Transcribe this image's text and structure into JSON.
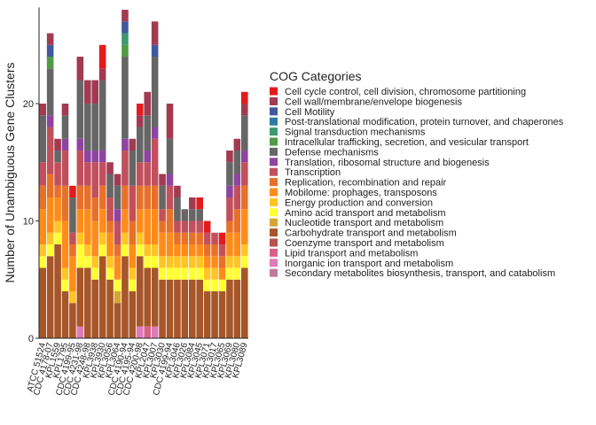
{
  "chart_data": {
    "type": "stacked-bar",
    "y_label": "Number of Unambiguous Gene Clusters",
    "legend_title": "COG Categories",
    "categories": [
      "ATCC 51524",
      "CDC 4178-07",
      "KPL1559",
      "KPL1795",
      "CDC 4199-95",
      "CDC 4231-98",
      "CDC 4248-98",
      "KPL3938",
      "KPL3930",
      "KPL3056",
      "KPL3064",
      "CDC 4190-94",
      "CDC 4195-94",
      "CDC 4200-98",
      "KPL2047",
      "KPL3007",
      "KPL3030",
      "CDC 4199-94",
      "KPL3046",
      "KPL3026",
      "KPL3084",
      "KPL3045",
      "KPL3071",
      "KPL3017",
      "KPL3065",
      "KPL3069",
      "KPL3080",
      "KPL3089"
    ],
    "ylim": [
      0,
      28.2
    ],
    "yticks": [
      0,
      10,
      20
    ],
    "series": [
      {
        "name": "Cell cycle control, cell division, chromosome partitioning",
        "color": "#e41a1c",
        "values": [
          0,
          0,
          0,
          0,
          1,
          0,
          0,
          0,
          2,
          0,
          0,
          0,
          0,
          1,
          0,
          0,
          0,
          0,
          0,
          0,
          0,
          1,
          1,
          0,
          1,
          0,
          0,
          1
        ]
      },
      {
        "name": "Cell wall/membrane/envelope biogenesis",
        "color": "#a23a52",
        "values": [
          1,
          1,
          1,
          1,
          0,
          2,
          2,
          2,
          1,
          1,
          1,
          1,
          1,
          1,
          2,
          2,
          1,
          3,
          1,
          0,
          1,
          0,
          0,
          0,
          0,
          1,
          1,
          1
        ]
      },
      {
        "name": "Cell Motility",
        "color": "#3f5a9e",
        "values": [
          0,
          1,
          0,
          0,
          0,
          0,
          0,
          0,
          0,
          0,
          0,
          1,
          0,
          0,
          0,
          1,
          0,
          0,
          0,
          0,
          0,
          0,
          0,
          0,
          0,
          0,
          0,
          0
        ]
      },
      {
        "name": "Post-translational modification, protein turnover, and chaperones",
        "color": "#2f7ba0",
        "values": [
          0,
          0,
          0,
          0,
          0,
          0,
          0,
          0,
          0,
          0,
          0,
          0,
          0,
          0,
          0,
          0,
          0,
          0,
          0,
          0,
          0,
          0,
          0,
          0,
          0,
          0,
          0,
          0
        ]
      },
      {
        "name": "Signal transduction mechanisms",
        "color": "#3d9970",
        "values": [
          0,
          0,
          0,
          0,
          0,
          0,
          0,
          0,
          0,
          0,
          0,
          1,
          0,
          0,
          0,
          0,
          0,
          0,
          0,
          0,
          0,
          0,
          0,
          0,
          0,
          0,
          0,
          0
        ]
      },
      {
        "name": "Intracellular trafficking, secretion, and vesicular transport",
        "color": "#4f9a45",
        "values": [
          0,
          1,
          0,
          0,
          0,
          0,
          0,
          0,
          0,
          0,
          0,
          1,
          0,
          0,
          0,
          0,
          0,
          0,
          0,
          0,
          0,
          0,
          0,
          0,
          0,
          0,
          0,
          0
        ]
      },
      {
        "name": "Defense mechanisms",
        "color": "#666666",
        "values": [
          4,
          4,
          1,
          2,
          3,
          5,
          4,
          4,
          6,
          2,
          2,
          7,
          3,
          3,
          3,
          6,
          2,
          3,
          2,
          1,
          1,
          1,
          0,
          0,
          0,
          2,
          2,
          3
        ]
      },
      {
        "name": "Translation, ribosomal structure and biogenesis",
        "color": "#8e44a0",
        "values": [
          0,
          1,
          0,
          1,
          0,
          1,
          1,
          1,
          1,
          0,
          1,
          1,
          0,
          0,
          1,
          1,
          0,
          1,
          0,
          0,
          0,
          0,
          0,
          0,
          0,
          1,
          1,
          1
        ]
      },
      {
        "name": "Transcription",
        "color": "#c2505c",
        "values": [
          2,
          4,
          2,
          3,
          1,
          3,
          2,
          3,
          2,
          2,
          2,
          3,
          3,
          2,
          2,
          4,
          1,
          2,
          1,
          1,
          1,
          1,
          1,
          1,
          1,
          2,
          2,
          2
        ]
      },
      {
        "name": "Replication, recombination and repair",
        "color": "#e8712a",
        "values": [
          2,
          2,
          1,
          3,
          1,
          2,
          2,
          2,
          2,
          1,
          1,
          2,
          2,
          2,
          2,
          2,
          1,
          2,
          1,
          1,
          1,
          1,
          1,
          1,
          1,
          1,
          2,
          2
        ]
      },
      {
        "name": "Mobilome: prophages, transposons",
        "color": "#ff8c1a",
        "values": [
          3,
          3,
          2,
          4,
          3,
          2,
          3,
          3,
          2,
          2,
          2,
          2,
          2,
          2,
          3,
          3,
          2,
          2,
          1,
          1,
          1,
          1,
          1,
          1,
          1,
          2,
          2,
          3
        ]
      },
      {
        "name": "Energy production and conversion",
        "color": "#ffc425",
        "values": [
          1,
          1,
          1,
          1,
          1,
          1,
          1,
          1,
          1,
          1,
          0,
          1,
          1,
          1,
          1,
          1,
          1,
          1,
          1,
          1,
          1,
          1,
          1,
          1,
          0,
          1,
          1,
          1
        ]
      },
      {
        "name": "Amino acid transport and metabolism",
        "color": "#ffff33",
        "values": [
          1,
          1,
          1,
          1,
          0,
          2,
          1,
          1,
          1,
          1,
          1,
          1,
          1,
          1,
          1,
          1,
          1,
          1,
          1,
          1,
          1,
          1,
          1,
          1,
          1,
          1,
          1,
          1
        ]
      },
      {
        "name": "Nucleotide transport and metabolism",
        "color": "#d6a531",
        "values": [
          0,
          0,
          0,
          0,
          0,
          0,
          0,
          0,
          0,
          0,
          1,
          0,
          0,
          0,
          0,
          0,
          0,
          0,
          0,
          0,
          0,
          0,
          0,
          0,
          0,
          0,
          0,
          0
        ]
      },
      {
        "name": "Carbohydrate transport and metabolism",
        "color": "#a65628",
        "values": [
          6,
          7,
          8,
          4,
          3,
          5,
          6,
          5,
          7,
          5,
          3,
          7,
          4,
          6,
          5,
          5,
          5,
          5,
          5,
          5,
          5,
          5,
          4,
          4,
          4,
          5,
          5,
          6
        ]
      },
      {
        "name": "Coenzyme transport and metabolism",
        "color": "#b8524e",
        "values": [
          0,
          0,
          0,
          0,
          0,
          0,
          0,
          0,
          0,
          0,
          0,
          0,
          0,
          0,
          0,
          0,
          0,
          0,
          0,
          0,
          0,
          0,
          0,
          0,
          0,
          0,
          0,
          0
        ]
      },
      {
        "name": "Lipid transport and metabolism",
        "color": "#d9608a",
        "values": [
          0,
          0,
          0,
          0,
          0,
          0,
          0,
          0,
          0,
          0,
          0,
          0,
          0,
          0,
          1,
          0,
          0,
          0,
          0,
          0,
          0,
          0,
          0,
          0,
          0,
          0,
          0,
          0
        ]
      },
      {
        "name": "Inorganic ion transport and metabolism",
        "color": "#e07ab8",
        "values": [
          0,
          0,
          0,
          0,
          0,
          1,
          0,
          0,
          0,
          0,
          0,
          0,
          0,
          1,
          0,
          1,
          0,
          0,
          0,
          0,
          0,
          0,
          0,
          0,
          0,
          0,
          0,
          0
        ]
      },
      {
        "name": "Secondary metabolites biosynthesis, transport, and catabolism",
        "color": "#c07a9c",
        "values": [
          0,
          0,
          0,
          0,
          0,
          0,
          0,
          0,
          0,
          0,
          0,
          0,
          0,
          0,
          0,
          0,
          0,
          0,
          0,
          0,
          0,
          0,
          0,
          0,
          0,
          0,
          0,
          0
        ]
      }
    ]
  }
}
